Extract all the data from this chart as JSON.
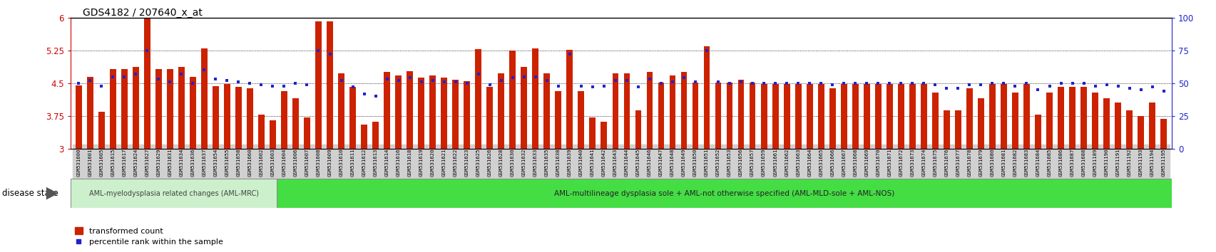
{
  "title": "GDS4182 / 207640_x_at",
  "ylim_left": [
    3,
    6
  ],
  "ylim_right": [
    0,
    100
  ],
  "yticks_left": [
    3,
    3.75,
    4.5,
    5.25,
    6
  ],
  "yticks_right": [
    0,
    25,
    50,
    75,
    100
  ],
  "bar_color": "#cc2200",
  "dot_color": "#2222cc",
  "bar_bottom": 3.0,
  "categories": [
    "GSM531600",
    "GSM531601",
    "GSM531605",
    "GSM531615",
    "GSM531617",
    "GSM531624",
    "GSM531627",
    "GSM531629",
    "GSM531631",
    "GSM531634",
    "GSM531636",
    "GSM531637",
    "GSM531654",
    "GSM531655",
    "GSM531658",
    "GSM531660",
    "GSM531602",
    "GSM531603",
    "GSM531604",
    "GSM531606",
    "GSM531607",
    "GSM531608",
    "GSM531609",
    "GSM531610",
    "GSM531611",
    "GSM531612",
    "GSM531613",
    "GSM531614",
    "GSM531616",
    "GSM531618",
    "GSM531619",
    "GSM531620",
    "GSM531621",
    "GSM531622",
    "GSM531623",
    "GSM531625",
    "GSM531626",
    "GSM531628",
    "GSM531630",
    "GSM531632",
    "GSM531633",
    "GSM531635",
    "GSM531638",
    "GSM531639",
    "GSM531640",
    "GSM531641",
    "GSM531642",
    "GSM531643",
    "GSM531644",
    "GSM531645",
    "GSM531646",
    "GSM531647",
    "GSM531648",
    "GSM531649",
    "GSM531650",
    "GSM531651",
    "GSM531652",
    "GSM531653",
    "GSM531656",
    "GSM531657",
    "GSM531659",
    "GSM531661",
    "GSM531662",
    "GSM531663",
    "GSM531664",
    "GSM531665",
    "GSM531666",
    "GSM531667",
    "GSM531668",
    "GSM531669",
    "GSM531670",
    "GSM531671",
    "GSM531672",
    "GSM531673",
    "GSM531674",
    "GSM531675",
    "GSM531676",
    "GSM531677",
    "GSM531678",
    "GSM531679",
    "GSM531680",
    "GSM531681",
    "GSM531682",
    "GSM531683",
    "GSM531684",
    "GSM531685",
    "GSM531686",
    "GSM531687",
    "GSM531688",
    "GSM531189",
    "GSM531190",
    "GSM531191",
    "GSM531192",
    "GSM531193",
    "GSM531194",
    "GSM531195"
  ],
  "bar_heights": [
    4.45,
    4.65,
    3.85,
    4.82,
    4.82,
    4.87,
    6.0,
    4.82,
    4.82,
    4.88,
    4.65,
    5.3,
    4.43,
    4.48,
    4.42,
    4.38,
    3.78,
    3.65,
    4.32,
    4.15,
    3.72,
    5.92,
    5.92,
    4.72,
    4.42,
    3.55,
    3.62,
    4.75,
    4.68,
    4.78,
    4.62,
    4.68,
    4.62,
    4.58,
    4.55,
    5.28,
    4.42,
    4.72,
    5.25,
    4.88,
    5.3,
    4.72,
    4.32,
    5.27,
    4.32,
    3.72,
    3.62,
    4.72,
    4.72,
    3.88,
    4.75,
    4.52,
    4.68,
    4.75,
    4.52,
    5.35,
    4.52,
    4.52,
    4.58,
    4.52,
    4.48,
    4.48,
    4.48,
    4.48,
    4.48,
    4.48,
    4.38,
    4.48,
    4.48,
    4.48,
    4.48,
    4.48,
    4.48,
    4.48,
    4.48,
    4.28,
    3.88,
    3.88,
    4.38,
    4.15,
    4.48,
    4.48,
    4.28,
    4.48,
    3.78,
    4.28,
    4.42,
    4.42,
    4.42,
    4.28,
    4.15,
    4.05,
    3.88,
    3.75,
    4.05,
    3.68
  ],
  "dot_values_pct": [
    50,
    52,
    48,
    55,
    55,
    57,
    75,
    53,
    51,
    57,
    50,
    60,
    53,
    52,
    51,
    50,
    49,
    48,
    48,
    50,
    49,
    75,
    72,
    52,
    47,
    42,
    40,
    53,
    52,
    54,
    51,
    52,
    51,
    51,
    50,
    57,
    49,
    52,
    54,
    55,
    55,
    52,
    48,
    72,
    48,
    47,
    48,
    52,
    52,
    47,
    53,
    50,
    51,
    54,
    51,
    75,
    51,
    50,
    51,
    50,
    50,
    50,
    50,
    50,
    50,
    50,
    49,
    50,
    50,
    50,
    50,
    50,
    50,
    50,
    50,
    49,
    46,
    46,
    49,
    49,
    50,
    50,
    48,
    50,
    45,
    48,
    50,
    50,
    50,
    48,
    49,
    48,
    46,
    45,
    47,
    44
  ],
  "disease_group1_label": "AML-myelodysplasia related changes (AML-MRC)",
  "disease_group2_label": "AML-multilineage dysplasia sole + AML-not otherwise specified (AML-MLD-sole + AML-NOS)",
  "group1_count": 18,
  "disease_state_label": "disease state",
  "legend_bar_label": "transformed count",
  "legend_dot_label": "percentile rank within the sample",
  "bg_color": "#ffffff",
  "plot_bg_color": "#ffffff",
  "tick_label_bg": "#d0d0d0",
  "group1_color": "#ccf0cc",
  "group2_color": "#44dd44"
}
